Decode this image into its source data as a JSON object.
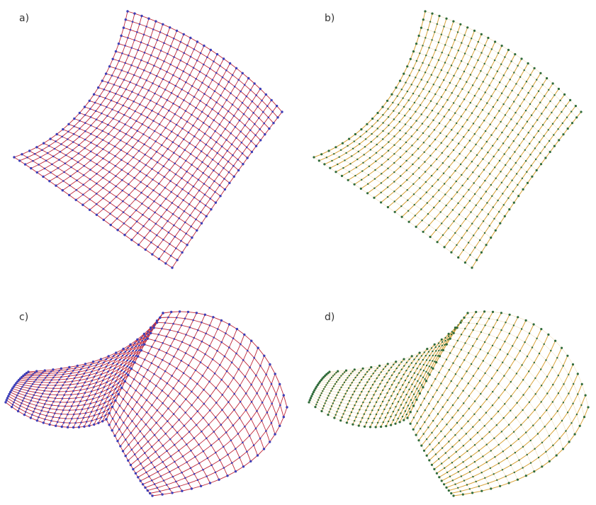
{
  "figure": {
    "panels": [
      {
        "label": "a)",
        "surface": "curved-sheet",
        "variant": "grid"
      },
      {
        "label": "b)",
        "surface": "curved-sheet",
        "variant": "ruled"
      },
      {
        "label": "c)",
        "surface": "saddle",
        "variant": "grid"
      },
      {
        "label": "d)",
        "surface": "saddle",
        "variant": "ruled"
      }
    ]
  },
  "colors": {
    "grid_line": "#c0283a",
    "grid_node": "#3d3fb8",
    "ruled_line": "#d9a43a",
    "ruled_node": "#2f6b3a"
  }
}
